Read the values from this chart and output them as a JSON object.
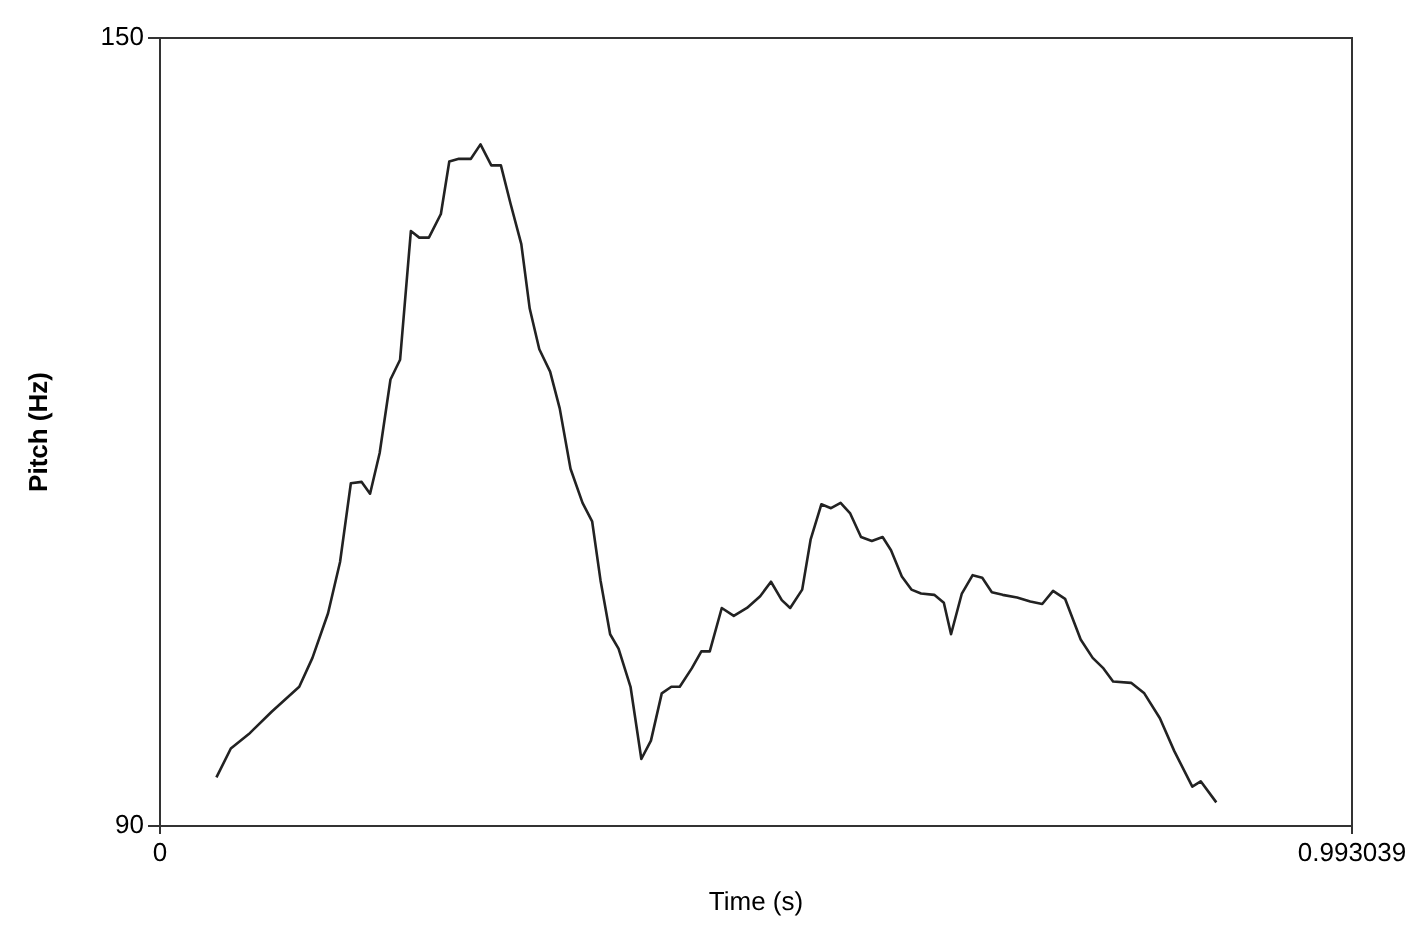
{
  "chart_data": {
    "type": "line",
    "xlabel": "Time (s)",
    "ylabel": "Pitch (Hz)",
    "xlim": [
      0,
      0.993039
    ],
    "xticks": [
      0,
      0.993039
    ],
    "ylim": [
      90,
      150
    ],
    "yticks": [
      90,
      150
    ],
    "legend": false,
    "marker": "none",
    "line_style": "solid",
    "series": [
      {
        "color": "#222222",
        "x": [
          0.047,
          0.059,
          0.074,
          0.093,
          0.116,
          0.127,
          0.14,
          0.15,
          0.159,
          0.168,
          0.175,
          0.183,
          0.192,
          0.2,
          0.209,
          0.216,
          0.224,
          0.234,
          0.241,
          0.249,
          0.259,
          0.267,
          0.276,
          0.284,
          0.292,
          0.301,
          0.308,
          0.316,
          0.325,
          0.333,
          0.342,
          0.352,
          0.36,
          0.367,
          0.375,
          0.382,
          0.392,
          0.401,
          0.409,
          0.418,
          0.426,
          0.433,
          0.443,
          0.451,
          0.458,
          0.468,
          0.478,
          0.489,
          0.5,
          0.509,
          0.518,
          0.525,
          0.535,
          0.542,
          0.551,
          0.559,
          0.567,
          0.575,
          0.584,
          0.593,
          0.602,
          0.609,
          0.618,
          0.626,
          0.634,
          0.645,
          0.653,
          0.659,
          0.668,
          0.677,
          0.685,
          0.693,
          0.702,
          0.714,
          0.725,
          0.735,
          0.744,
          0.754,
          0.767,
          0.777,
          0.786,
          0.794,
          0.809,
          0.82,
          0.833,
          0.845,
          0.86,
          0.867,
          0.88
        ],
        "values": [
          93.7,
          95.9,
          97.0,
          98.7,
          100.6,
          102.8,
          106.2,
          110.1,
          116.1,
          116.2,
          115.3,
          118.4,
          124.0,
          125.5,
          135.3,
          134.8,
          134.8,
          136.6,
          140.6,
          140.8,
          140.8,
          141.9,
          140.3,
          140.3,
          137.4,
          134.3,
          129.4,
          126.3,
          124.6,
          121.8,
          117.2,
          114.6,
          113.2,
          108.7,
          104.6,
          103.5,
          100.6,
          95.1,
          96.5,
          100.1,
          100.6,
          100.6,
          102.0,
          103.3,
          103.3,
          106.6,
          106.0,
          106.6,
          107.5,
          108.6,
          107.2,
          106.6,
          108.0,
          111.8,
          114.5,
          114.2,
          114.6,
          113.8,
          112.0,
          111.7,
          112.0,
          111.0,
          109.0,
          108.0,
          107.7,
          107.6,
          107.0,
          104.6,
          107.7,
          109.1,
          108.9,
          107.8,
          107.6,
          107.4,
          107.1,
          106.9,
          107.9,
          107.3,
          104.2,
          102.8,
          102.0,
          101.0,
          100.9,
          100.1,
          98.2,
          95.7,
          93.0,
          93.4,
          91.8
        ]
      }
    ]
  }
}
